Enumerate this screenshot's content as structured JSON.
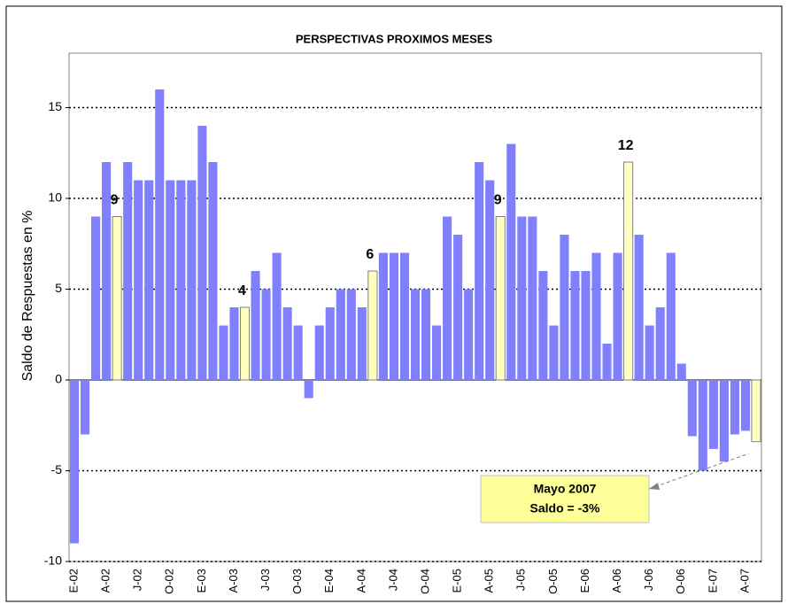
{
  "chart_data": {
    "type": "bar",
    "title": "PERSPECTIVAS PROXIMOS MESES",
    "y_label": "Saldo de Respuestas en %",
    "categories": [
      "E-02",
      null,
      null,
      "A-02",
      null,
      null,
      "J-02",
      null,
      null,
      "O-02",
      null,
      null,
      "E-03",
      null,
      null,
      "A-03",
      null,
      null,
      "J-03",
      null,
      null,
      "O-03",
      null,
      null,
      "E-04",
      null,
      null,
      "A-04",
      null,
      null,
      "J-04",
      null,
      null,
      "O-04",
      null,
      null,
      "E-05",
      null,
      null,
      "A-05",
      null,
      null,
      "J-05",
      null,
      null,
      "O-05",
      null,
      null,
      "E-06",
      null,
      null,
      "A-06",
      null,
      null,
      "J-06",
      null,
      null,
      "O-06",
      null,
      null,
      "E-07",
      null,
      null,
      "A-07",
      null
    ],
    "values": [
      -9,
      -3,
      9,
      12,
      9,
      12,
      11,
      11,
      16,
      11,
      11,
      11,
      14,
      12,
      3,
      4,
      4,
      6,
      5,
      7,
      4,
      3,
      -1,
      3,
      4,
      5,
      5,
      4,
      6,
      7,
      7,
      7,
      5,
      5,
      3,
      9,
      8,
      5,
      12,
      11,
      9,
      13,
      9,
      9,
      6,
      3,
      8,
      6,
      6,
      7,
      2,
      7,
      12,
      8,
      3,
      4,
      7,
      0.9,
      -3.1,
      -5,
      -3.8,
      -4.5,
      -3,
      -2.8,
      -3.4
    ],
    "value_labels": [
      null,
      null,
      null,
      null,
      "9",
      null,
      null,
      null,
      null,
      null,
      null,
      null,
      null,
      null,
      null,
      null,
      "4",
      null,
      null,
      null,
      null,
      null,
      null,
      null,
      null,
      null,
      null,
      null,
      "6",
      null,
      null,
      null,
      null,
      null,
      null,
      null,
      null,
      null,
      null,
      null,
      "9",
      null,
      null,
      null,
      null,
      null,
      null,
      null,
      null,
      null,
      null,
      null,
      "12",
      null,
      null,
      null,
      null,
      null,
      null,
      null,
      null,
      null,
      null,
      null,
      null
    ],
    "color": "#8080ff",
    "highlight_color": "#ffffc0",
    "highlight": [
      false,
      false,
      false,
      false,
      true,
      false,
      false,
      false,
      false,
      false,
      false,
      false,
      false,
      false,
      false,
      false,
      true,
      false,
      false,
      false,
      false,
      false,
      false,
      false,
      false,
      false,
      false,
      false,
      true,
      false,
      false,
      false,
      false,
      false,
      false,
      false,
      false,
      false,
      false,
      false,
      true,
      false,
      false,
      false,
      false,
      false,
      false,
      false,
      false,
      false,
      false,
      false,
      true,
      false,
      false,
      false,
      false,
      false,
      false,
      false,
      false,
      false,
      false,
      false,
      true
    ],
    "ylim": [
      -10,
      18
    ],
    "yticks": [
      -10,
      -5,
      0,
      5,
      10,
      15
    ],
    "grid": true,
    "annotation": [
      "Mayo 2007",
      "Saldo = -3%"
    ]
  }
}
